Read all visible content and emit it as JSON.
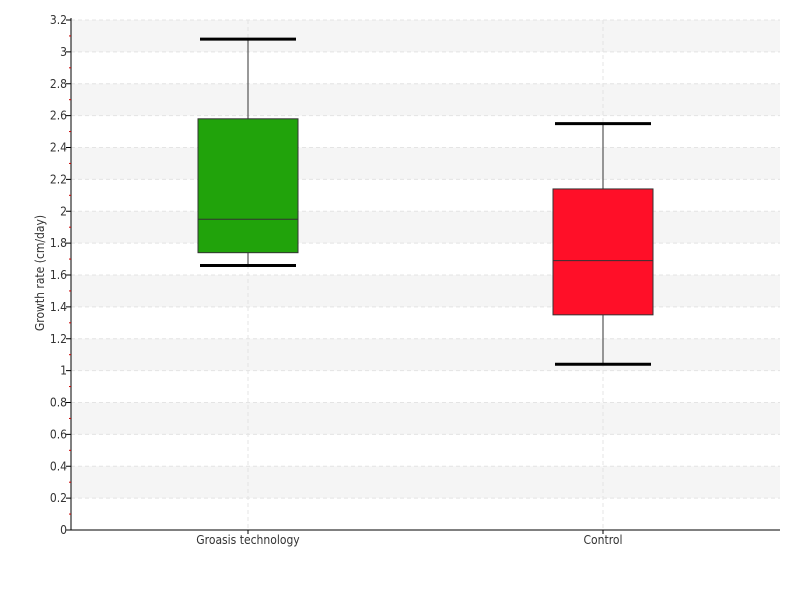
{
  "chart_data": {
    "type": "box",
    "ylabel": "Growth rate (cm/day)",
    "ylim": [
      0,
      3.2
    ],
    "y_ticks": [
      0,
      0.2,
      0.4,
      0.6,
      0.8,
      1,
      1.2,
      1.4,
      1.6,
      1.8,
      2,
      2.2,
      2.4,
      2.6,
      2.8,
      3,
      3.2
    ],
    "y_tick_labels": [
      "0",
      "0.2",
      "0.4",
      "0.6",
      "0.8",
      "1",
      "1.2",
      "1.4",
      "1.6",
      "1.8",
      "2",
      "2.2",
      "2.4",
      "2.6",
      "2.8",
      "3",
      "3.2"
    ],
    "grid": true,
    "alternating_bands": true,
    "categories": [
      "Groasis technology",
      "Control"
    ],
    "boxes": [
      {
        "category": "Groasis technology",
        "whisker_low": 1.66,
        "q1": 1.74,
        "median": 1.95,
        "q3": 2.58,
        "whisker_high": 3.08,
        "color": "#21a30b"
      },
      {
        "category": "Control",
        "whisker_low": 1.04,
        "q1": 1.35,
        "median": 1.69,
        "q3": 2.14,
        "whisker_high": 2.55,
        "color": "#ff0f28"
      }
    ]
  }
}
